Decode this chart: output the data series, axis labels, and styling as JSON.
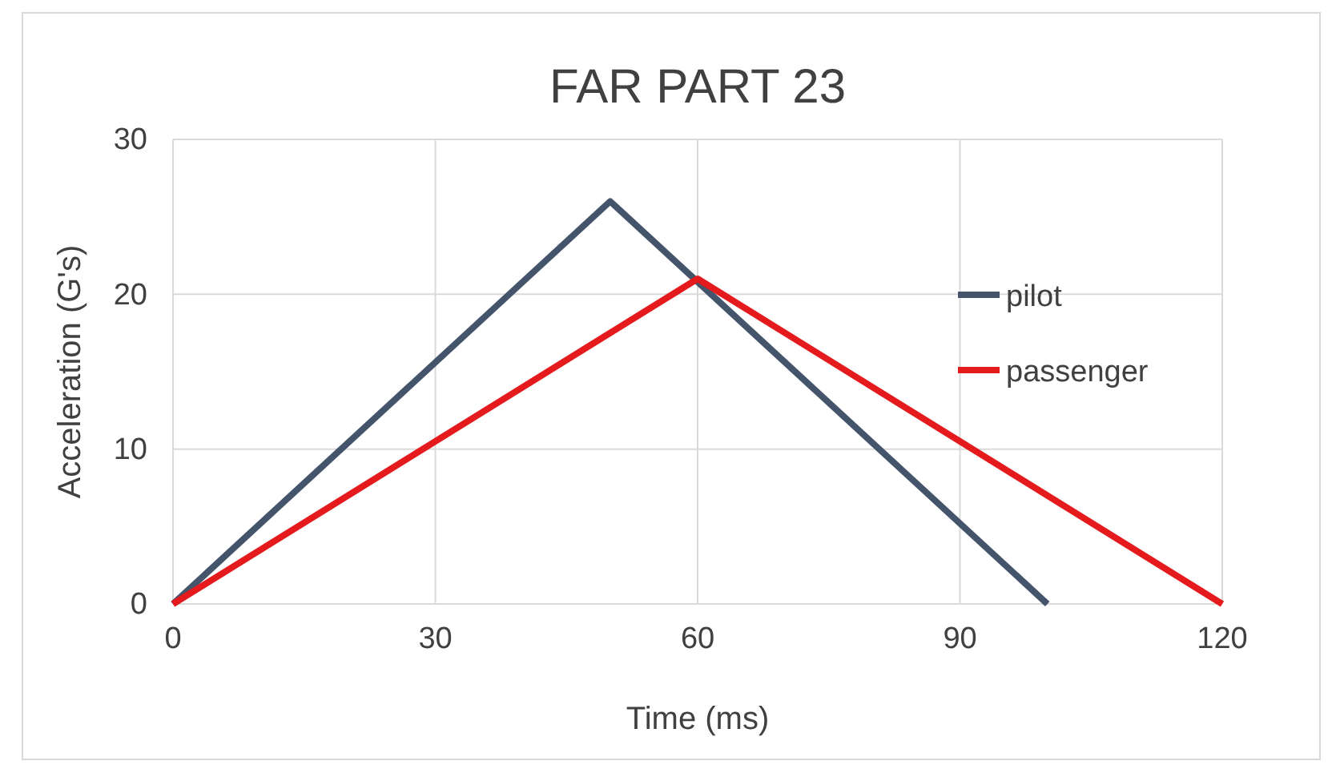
{
  "chart_data": {
    "type": "line",
    "title": "FAR PART 23",
    "xlabel": "Time (ms)",
    "ylabel": "Acceleration (G's)",
    "xlim": [
      0,
      120
    ],
    "xticks": [
      0,
      30,
      60,
      90,
      120
    ],
    "ylim": [
      0,
      30
    ],
    "yticks": [
      0,
      10,
      20,
      30
    ],
    "grid": true,
    "legend": "right",
    "series": [
      {
        "name": "pilot",
        "color": "#44546a",
        "x": [
          0,
          50,
          100
        ],
        "values": [
          0,
          26,
          0
        ]
      },
      {
        "name": "passenger",
        "color": "#e41a1c",
        "x": [
          0,
          60,
          120
        ],
        "values": [
          0,
          21,
          0
        ]
      }
    ]
  }
}
